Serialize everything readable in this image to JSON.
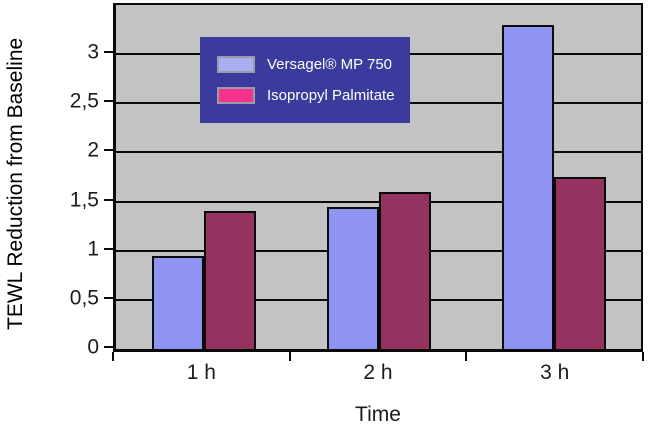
{
  "chart_data": {
    "type": "bar",
    "title": "",
    "xlabel": "Time",
    "ylabel": "TEWL Reduction from Baseline",
    "categories": [
      "1 h",
      "2 h",
      "3 h"
    ],
    "series": [
      {
        "name": "Versagel® MP 750",
        "values": [
          0.95,
          1.45,
          3.3
        ],
        "bar_color": "#8f94f2",
        "legend_swatch_color": "#a8aef0"
      },
      {
        "name": "Isopropyl Palmitate",
        "values": [
          1.4,
          1.6,
          1.75
        ],
        "bar_color": "#943260",
        "legend_swatch_color": "#f5338c"
      }
    ],
    "ylim": [
      0,
      3.5
    ],
    "yticks": [
      {
        "value": 0,
        "label": "0"
      },
      {
        "value": 0.5,
        "label": "0,5"
      },
      {
        "value": 1,
        "label": "1"
      },
      {
        "value": 1.5,
        "label": "1,5"
      },
      {
        "value": 2,
        "label": "2"
      },
      {
        "value": 2.5,
        "label": "2,5"
      },
      {
        "value": 3,
        "label": "3"
      }
    ],
    "grid": "horizontal",
    "legend_position": "top-center-inside",
    "colors": {
      "plot_background": "#c3c3c3",
      "outer_background": "#ffffff",
      "gridline": "#0a0a0a",
      "axis": "#0a0a0a",
      "legend_background": "#3b3b9e",
      "legend_text": "#ffffff",
      "axis_label_text": "#1c1c1c"
    }
  }
}
